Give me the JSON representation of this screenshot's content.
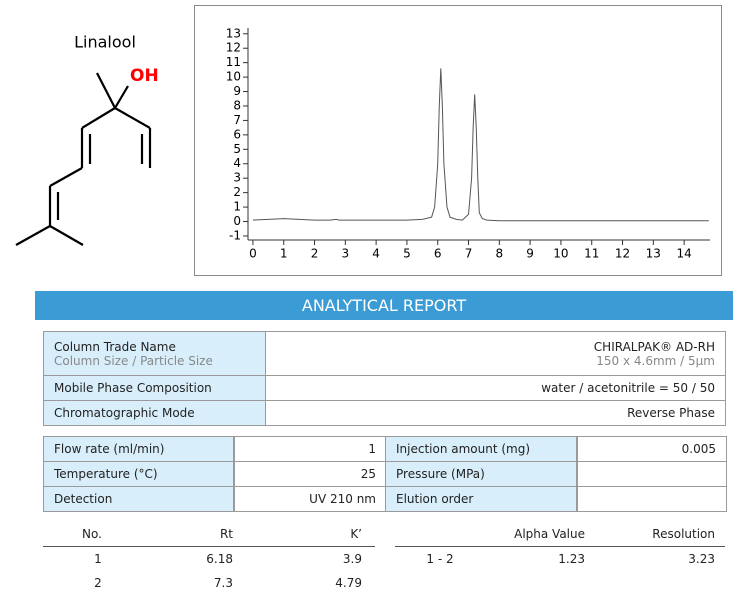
{
  "molecule": {
    "name": "Linalool",
    "group": "OH"
  },
  "chart_data": {
    "type": "line",
    "x": [
      0,
      0.5,
      1,
      1.5,
      2,
      2.5,
      2.7,
      2.8,
      3,
      3.5,
      4,
      4.5,
      5,
      5.5,
      5.8,
      5.9,
      6.0,
      6.05,
      6.1,
      6.15,
      6.2,
      6.3,
      6.4,
      6.6,
      6.8,
      7.0,
      7.1,
      7.15,
      7.2,
      7.25,
      7.3,
      7.35,
      7.45,
      7.6,
      8,
      9,
      10,
      11,
      12,
      13,
      14.8
    ],
    "values": [
      0.1,
      0.15,
      0.2,
      0.15,
      0.1,
      0.1,
      0.15,
      0.1,
      0.1,
      0.1,
      0.1,
      0.1,
      0.1,
      0.15,
      0.3,
      1,
      4,
      8,
      10.6,
      8,
      4,
      1,
      0.3,
      0.15,
      0.1,
      0.5,
      3,
      6.5,
      8.8,
      6.5,
      3,
      0.6,
      0.2,
      0.1,
      0.05,
      0.05,
      0.05,
      0.05,
      0.05,
      0.05,
      0.05
    ],
    "color": "#555555",
    "xlim": [
      -0.16,
      14.84
    ],
    "ylim": [
      -1.28,
      13.4
    ],
    "xticks": [
      0,
      1,
      2,
      3,
      4,
      5,
      6,
      7,
      8,
      9,
      10,
      11,
      12,
      13,
      14
    ],
    "yticks": [
      -1,
      0,
      1,
      2,
      3,
      4,
      5,
      6,
      7,
      8,
      9,
      10,
      11,
      12,
      13
    ]
  },
  "report": {
    "title": "ANALYTICAL REPORT",
    "column_info": [
      {
        "label": "Column Trade Name",
        "sublabel": "Column Size / Particle Size",
        "value": "CHIRALPAK® AD-RH",
        "subvalue": "150 x 4.6mm / 5µm"
      },
      {
        "label": "Mobile Phase Composition",
        "value": "water / acetonitrile = 50 / 50"
      },
      {
        "label": "Chromatographic Mode",
        "value": "Reverse Phase"
      }
    ],
    "conditions": [
      [
        {
          "label": "Flow rate (ml/min)",
          "value": "1"
        },
        {
          "label": "Injection amount (mg)",
          "value": "0.005"
        }
      ],
      [
        {
          "label": "Temperature (°C)",
          "value": "25"
        },
        {
          "label": "Pressure (MPa)"
        }
      ],
      [
        {
          "label": "Detection",
          "value": "UV 210 nm"
        },
        {
          "label": "Elution order"
        }
      ]
    ],
    "results": {
      "headers": [
        "No.",
        "Rt",
        "K’",
        "Alpha Value",
        "Resolution"
      ],
      "rows": [
        [
          "1",
          "6.18",
          "3.9",
          "1 - 2",
          "1.23",
          "3.23"
        ],
        [
          "2",
          "7.3",
          "4.79"
        ]
      ]
    }
  }
}
